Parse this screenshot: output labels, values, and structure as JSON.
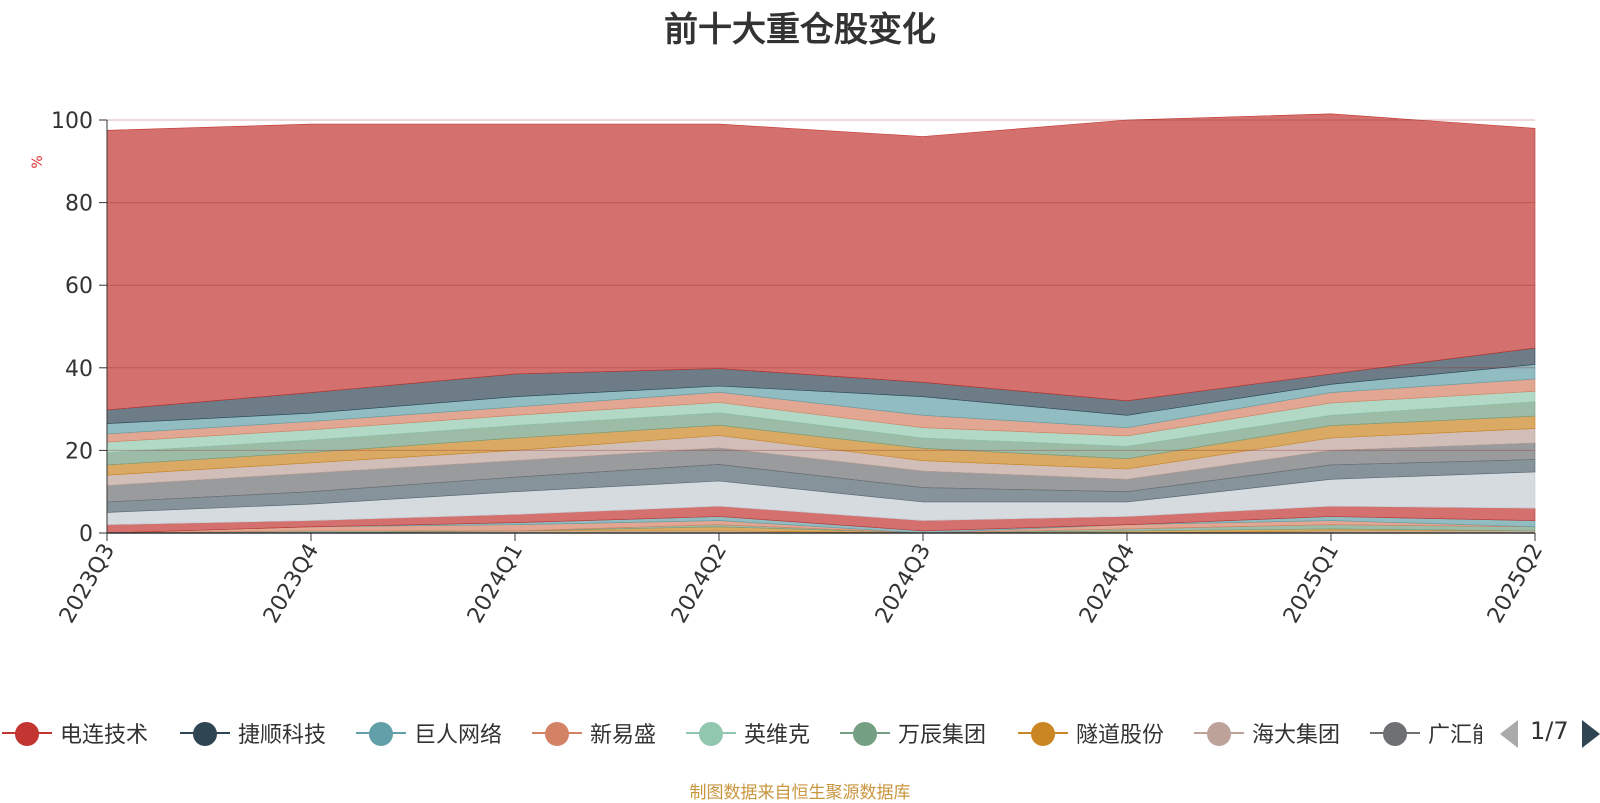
{
  "chart_data": {
    "type": "area",
    "stacked": true,
    "title": "前十大重仓股变化",
    "ylabel": "%",
    "ylim": [
      0,
      100
    ],
    "yticks": [
      0,
      20,
      40,
      60,
      80,
      100
    ],
    "categories": [
      "2023Q3",
      "2023Q4",
      "2024Q1",
      "2024Q2",
      "2024Q3",
      "2024Q4",
      "2025Q1",
      "2025Q2"
    ],
    "series": [
      {
        "name": "电连技术",
        "color": "#c23531",
        "values": [
          67.7,
          65.0,
          60.5,
          59.2,
          59.5,
          68.0,
          63.0,
          53.2
        ]
      },
      {
        "name": "捷顺科技",
        "color": "#2f4554",
        "values": [
          3.3,
          5.0,
          5.5,
          4.2,
          3.5,
          3.5,
          2.5,
          4.0
        ]
      },
      {
        "name": "巨人网络",
        "color": "#61a0a8",
        "values": [
          2.5,
          2.0,
          2.5,
          1.5,
          4.5,
          3.0,
          2.0,
          3.5
        ]
      },
      {
        "name": "新易盛",
        "color": "#d48265",
        "values": [
          2.0,
          2.0,
          2.0,
          2.5,
          3.0,
          2.0,
          2.5,
          3.0
        ]
      },
      {
        "name": "英维克",
        "color": "#91c7ae",
        "values": [
          2.5,
          2.5,
          2.5,
          2.5,
          2.5,
          2.5,
          3.0,
          2.5
        ]
      },
      {
        "name": "万辰集团",
        "color": "#749f83",
        "values": [
          3.0,
          3.0,
          3.0,
          3.0,
          2.5,
          3.0,
          2.5,
          3.5
        ]
      },
      {
        "name": "隧道股份",
        "color": "#ca8622",
        "values": [
          2.5,
          2.5,
          3.0,
          2.5,
          3.0,
          2.5,
          3.0,
          3.0
        ]
      },
      {
        "name": "海大集团",
        "color": "#bda29a",
        "values": [
          2.5,
          2.5,
          2.5,
          3.0,
          2.5,
          2.5,
          3.0,
          3.5
        ]
      },
      {
        "name": "广汇能源",
        "color": "#6e7074",
        "values": [
          4.0,
          4.5,
          4.0,
          4.0,
          4.0,
          3.0,
          3.5,
          4.0
        ]
      },
      {
        "name": "",
        "color": "#546570",
        "values": [
          2.5,
          3.0,
          3.5,
          4.0,
          3.5,
          2.5,
          3.5,
          3.0
        ]
      },
      {
        "name": "",
        "color": "#c4ccd3",
        "values": [
          3.0,
          4.0,
          5.5,
          6.1,
          4.5,
          3.5,
          6.5,
          8.8
        ]
      },
      {
        "name": "",
        "color": "#c23531",
        "values": [
          2.0,
          1.5,
          2.0,
          2.5,
          2.5,
          2.0,
          2.5,
          3.0
        ]
      },
      {
        "name": "",
        "color": "#61a0a8",
        "values": [
          0.0,
          0.0,
          0.5,
          1.0,
          0.5,
          0.0,
          1.0,
          1.5
        ]
      },
      {
        "name": "",
        "color": "#d48265",
        "values": [
          0.0,
          1.0,
          1.5,
          1.0,
          0.0,
          1.0,
          1.0,
          0.0
        ]
      },
      {
        "name": "",
        "color": "#749f83",
        "values": [
          0.0,
          0.5,
          0.0,
          0.5,
          0.0,
          0.5,
          1.0,
          1.0
        ]
      },
      {
        "name": "",
        "color": "#ca8622",
        "values": [
          0.0,
          0.0,
          0.0,
          1.0,
          0.0,
          0.5,
          0.5,
          0.0
        ]
      },
      {
        "name": "",
        "color": "#bda29a",
        "values": [
          0.0,
          0.0,
          0.5,
          0.5,
          0.0,
          0.0,
          0.5,
          0.5
        ]
      }
    ],
    "legend_position": "bottom"
  },
  "legend": {
    "items": [
      "电连技术",
      "捷顺科技",
      "巨人网络",
      "新易盛",
      "英维克",
      "万辰集团",
      "隧道股份",
      "海大集团",
      "广汇能源"
    ],
    "colors": [
      "#c23531",
      "#2f4554",
      "#61a0a8",
      "#d48265",
      "#91c7ae",
      "#749f83",
      "#ca8622",
      "#bda29a",
      "#6e7074"
    ],
    "page_text": "1/7",
    "prev_icon": "triangle-left-icon",
    "next_icon": "triangle-right-icon"
  },
  "footer": {
    "source_note": "制图数据来自恒生聚源数据库"
  }
}
